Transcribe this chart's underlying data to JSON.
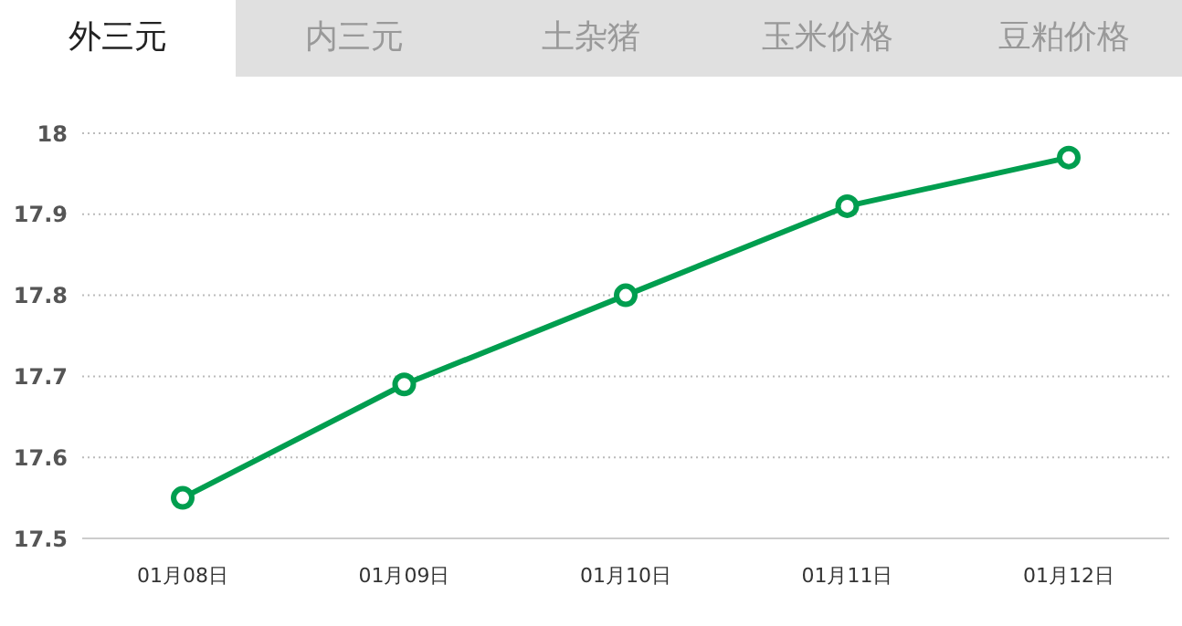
{
  "chart_data": {
    "type": "line",
    "title": "外三元",
    "annotations": [
      "内三元",
      "土杂猪",
      "玉米价格",
      "豆粕价格"
    ],
    "categories": [
      "01月08日",
      "01月09日",
      "01月10日",
      "01月11日",
      "01月12日"
    ],
    "series": [
      {
        "color": "#009e4f",
        "values": [
          17.55,
          17.69,
          17.8,
          17.91,
          17.97
        ]
      }
    ],
    "ylim": [
      17.5,
      18
    ],
    "yticks": [
      17.5,
      17.6,
      17.7,
      17.8,
      17.9,
      18
    ],
    "grid": "y",
    "marker": "circle",
    "line_style": "solid",
    "legend": false
  }
}
